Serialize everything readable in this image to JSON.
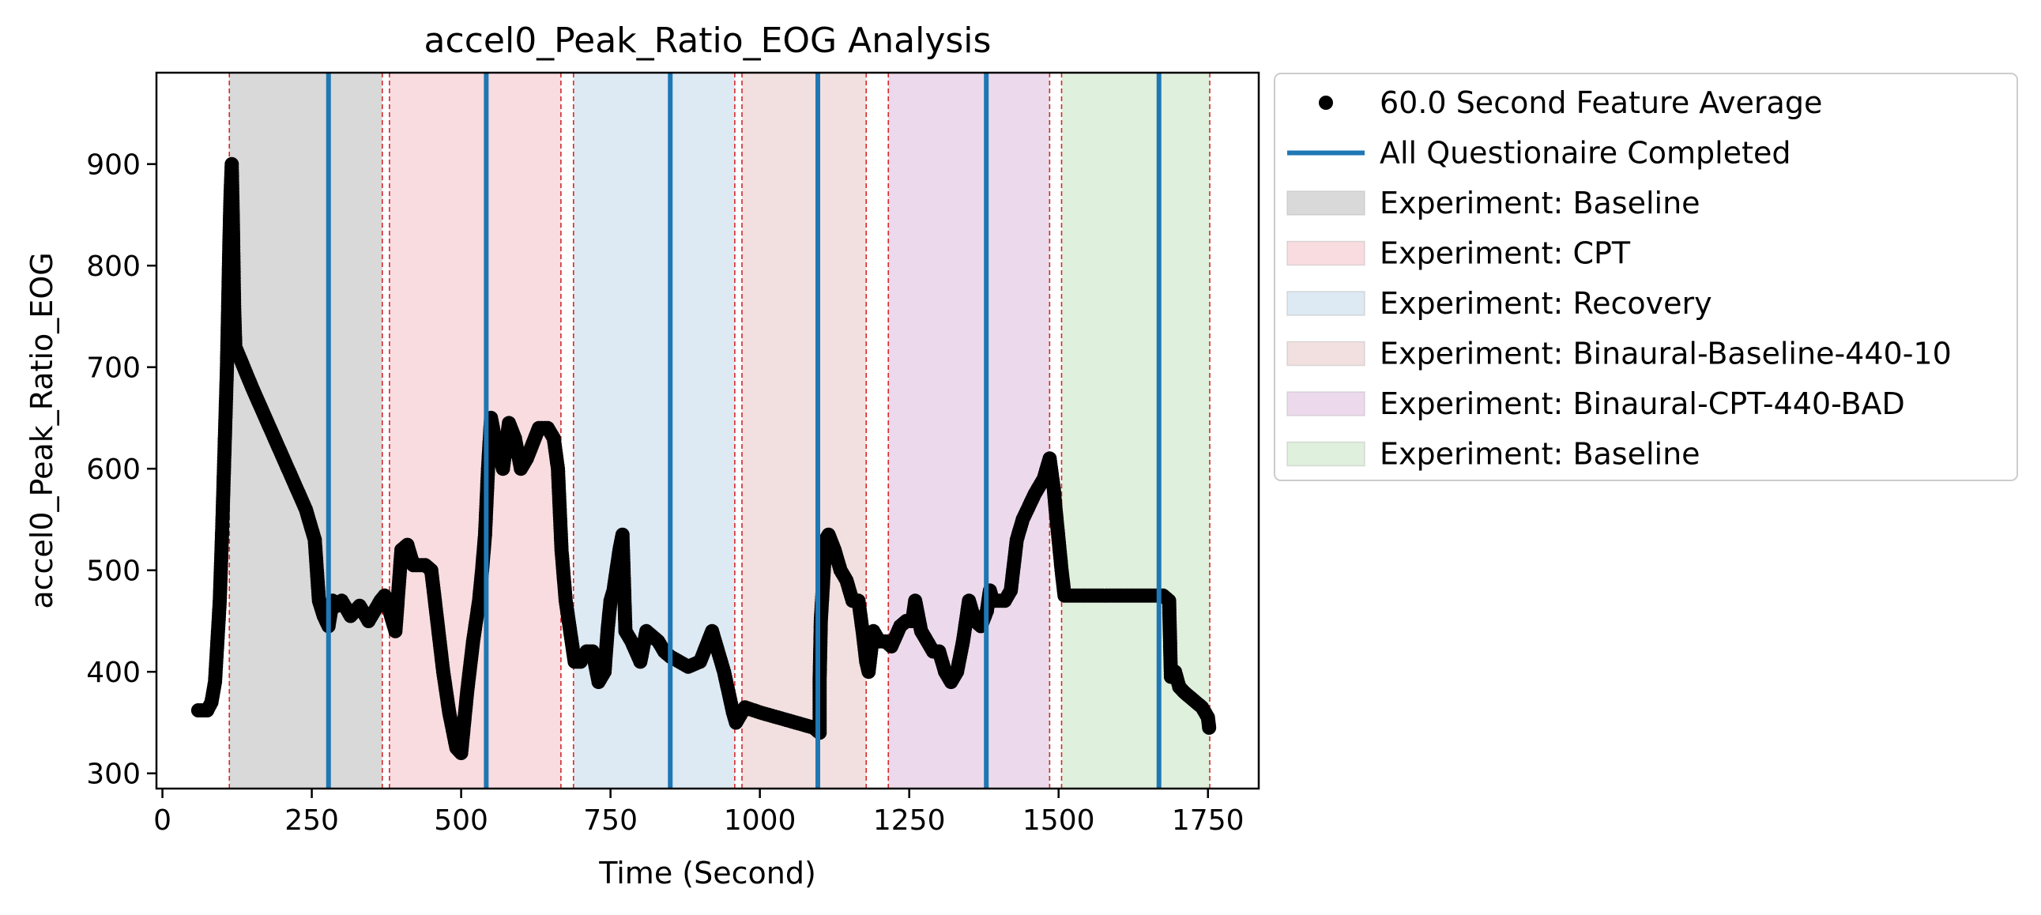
{
  "chart_data": {
    "type": "scatter",
    "title": "accel0_Peak_Ratio_EOG Analysis",
    "xlabel": "Time (Second)",
    "ylabel": "accel0_Peak_Ratio_EOG",
    "xlim": [
      -10,
      1835
    ],
    "ylim": [
      285,
      990
    ],
    "xticks": [
      0,
      250,
      500,
      750,
      1000,
      1250,
      1500,
      1750
    ],
    "yticks": [
      300,
      400,
      500,
      600,
      700,
      800,
      900
    ],
    "grid": false,
    "legend_position": "outside-right",
    "marker_color": "#000000",
    "questionnaire_color": "#1f77b4",
    "boundary_color": "#d62728",
    "series": [
      {
        "name": "60.0 Second Feature Average",
        "points": [
          [
            60,
            362
          ],
          [
            75,
            362
          ],
          [
            82,
            370
          ],
          [
            88,
            390
          ],
          [
            92,
            430
          ],
          [
            96,
            470
          ],
          [
            100,
            540
          ],
          [
            104,
            620
          ],
          [
            108,
            700
          ],
          [
            110,
            760
          ],
          [
            112,
            820
          ],
          [
            114,
            870
          ],
          [
            116,
            900
          ],
          [
            118,
            840
          ],
          [
            120,
            760
          ],
          [
            122,
            720
          ],
          [
            150,
            680
          ],
          [
            180,
            640
          ],
          [
            210,
            600
          ],
          [
            240,
            560
          ],
          [
            255,
            530
          ],
          [
            262,
            470
          ],
          [
            270,
            455
          ],
          [
            278,
            445
          ],
          [
            285,
            470
          ],
          [
            292,
            465
          ],
          [
            300,
            470
          ],
          [
            315,
            455
          ],
          [
            330,
            465
          ],
          [
            345,
            450
          ],
          [
            355,
            460
          ],
          [
            365,
            470
          ],
          [
            372,
            475
          ],
          [
            380,
            460
          ],
          [
            390,
            440
          ],
          [
            400,
            520
          ],
          [
            410,
            525
          ],
          [
            420,
            505
          ],
          [
            430,
            505
          ],
          [
            440,
            505
          ],
          [
            450,
            500
          ],
          [
            460,
            450
          ],
          [
            470,
            400
          ],
          [
            480,
            360
          ],
          [
            492,
            325
          ],
          [
            500,
            320
          ],
          [
            510,
            380
          ],
          [
            520,
            430
          ],
          [
            530,
            470
          ],
          [
            535,
            500
          ],
          [
            540,
            535
          ],
          [
            545,
            600
          ],
          [
            550,
            650
          ],
          [
            560,
            620
          ],
          [
            570,
            600
          ],
          [
            580,
            645
          ],
          [
            590,
            630
          ],
          [
            600,
            600
          ],
          [
            610,
            610
          ],
          [
            620,
            625
          ],
          [
            630,
            640
          ],
          [
            645,
            640
          ],
          [
            655,
            630
          ],
          [
            662,
            600
          ],
          [
            668,
            520
          ],
          [
            675,
            470
          ],
          [
            685,
            430
          ],
          [
            690,
            410
          ],
          [
            700,
            410
          ],
          [
            710,
            420
          ],
          [
            720,
            420
          ],
          [
            730,
            390
          ],
          [
            740,
            400
          ],
          [
            745,
            440
          ],
          [
            750,
            470
          ],
          [
            755,
            480
          ],
          [
            760,
            500
          ],
          [
            765,
            520
          ],
          [
            770,
            535
          ],
          [
            775,
            440
          ],
          [
            785,
            430
          ],
          [
            800,
            410
          ],
          [
            810,
            440
          ],
          [
            820,
            435
          ],
          [
            830,
            430
          ],
          [
            840,
            420
          ],
          [
            850,
            415
          ],
          [
            880,
            405
          ],
          [
            900,
            410
          ],
          [
            920,
            440
          ],
          [
            940,
            400
          ],
          [
            955,
            360
          ],
          [
            960,
            350
          ],
          [
            975,
            365
          ],
          [
            1000,
            360
          ],
          [
            1030,
            355
          ],
          [
            1060,
            350
          ],
          [
            1090,
            345
          ],
          [
            1100,
            340
          ],
          [
            1100,
            390
          ],
          [
            1102,
            450
          ],
          [
            1105,
            480
          ],
          [
            1110,
            530
          ],
          [
            1115,
            535
          ],
          [
            1125,
            520
          ],
          [
            1135,
            500
          ],
          [
            1145,
            490
          ],
          [
            1155,
            470
          ],
          [
            1165,
            470
          ],
          [
            1172,
            440
          ],
          [
            1178,
            410
          ],
          [
            1182,
            400
          ],
          [
            1190,
            440
          ],
          [
            1200,
            430
          ],
          [
            1210,
            430
          ],
          [
            1220,
            425
          ],
          [
            1235,
            445
          ],
          [
            1245,
            450
          ],
          [
            1255,
            450
          ],
          [
            1260,
            470
          ],
          [
            1270,
            440
          ],
          [
            1280,
            430
          ],
          [
            1290,
            420
          ],
          [
            1300,
            420
          ],
          [
            1310,
            400
          ],
          [
            1320,
            390
          ],
          [
            1330,
            400
          ],
          [
            1340,
            430
          ],
          [
            1350,
            470
          ],
          [
            1360,
            450
          ],
          [
            1370,
            445
          ],
          [
            1380,
            460
          ],
          [
            1385,
            480
          ],
          [
            1390,
            470
          ],
          [
            1400,
            470
          ],
          [
            1410,
            470
          ],
          [
            1420,
            480
          ],
          [
            1430,
            530
          ],
          [
            1440,
            550
          ],
          [
            1460,
            575
          ],
          [
            1475,
            590
          ],
          [
            1485,
            610
          ],
          [
            1492,
            580
          ],
          [
            1495,
            560
          ],
          [
            1500,
            530
          ],
          [
            1505,
            500
          ],
          [
            1510,
            475
          ],
          [
            1520,
            475
          ],
          [
            1560,
            475
          ],
          [
            1600,
            475
          ],
          [
            1640,
            475
          ],
          [
            1675,
            475
          ],
          [
            1685,
            470
          ],
          [
            1688,
            395
          ],
          [
            1695,
            400
          ],
          [
            1702,
            385
          ],
          [
            1710,
            380
          ],
          [
            1720,
            375
          ],
          [
            1730,
            370
          ],
          [
            1740,
            365
          ],
          [
            1745,
            360
          ],
          [
            1750,
            355
          ],
          [
            1752,
            345
          ]
        ]
      }
    ],
    "questionnaire_lines": {
      "name": "All Questionaire Completed",
      "x": [
        278,
        542,
        850,
        1097,
        1379,
        1668
      ]
    },
    "phase_boundaries": [
      112,
      368,
      380,
      667,
      688,
      958,
      970,
      1178,
      1215,
      1485,
      1505,
      1753
    ],
    "phases": [
      {
        "name": "Experiment: Baseline",
        "start": 112,
        "end": 368,
        "color": "#d9d9d9"
      },
      {
        "name": "Experiment: CPT",
        "start": 380,
        "end": 667,
        "color": "#f8dcdf"
      },
      {
        "name": "Experiment: Recovery",
        "start": 688,
        "end": 958,
        "color": "#dde9f3"
      },
      {
        "name": "Experiment: Binaural-Baseline-440-10",
        "start": 970,
        "end": 1178,
        "color": "#f1e0df"
      },
      {
        "name": "Experiment: Binaural-CPT-440-BAD",
        "start": 1215,
        "end": 1485,
        "color": "#ecdaec"
      },
      {
        "name": "Experiment: Baseline",
        "start": 1505,
        "end": 1753,
        "color": "#dff0dc"
      }
    ]
  }
}
